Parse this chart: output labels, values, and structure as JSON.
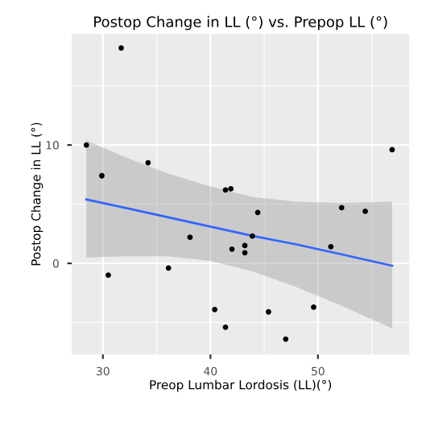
{
  "chart_data": {
    "type": "scatter",
    "title": "Postop Change in LL (°) vs. Prepop LL (°)",
    "xlabel": "Preop Lumbar Lordosis (LL)(°)",
    "ylabel": "Postop Change in LL (°)",
    "xlim": [
      27.1,
      58.5
    ],
    "ylim": [
      -7.7,
      19.4
    ],
    "xticks": [
      30,
      40,
      50
    ],
    "yticks": [
      0,
      10
    ],
    "grid": true,
    "marker": "circle",
    "series": [
      {
        "color": "#000000",
        "x": [
          28.46,
          29.9,
          30.5,
          31.7,
          34.2,
          36.1,
          38.1,
          40.4,
          41.4,
          41.4,
          41.9,
          42.0,
          43.2,
          43.2,
          43.9,
          44.4,
          45.4,
          47.0,
          49.6,
          51.2,
          52.2,
          54.4,
          56.9
        ],
        "values": [
          10.0,
          7.4,
          -1.0,
          18.2,
          8.5,
          -0.4,
          2.2,
          -3.9,
          6.2,
          -5.4,
          6.3,
          1.2,
          1.5,
          0.9,
          2.3,
          4.3,
          -4.1,
          -6.4,
          -3.7,
          1.4,
          4.7,
          4.4,
          9.6
        ]
      },
      {
        "type": "line",
        "color": "#3366ff",
        "marker": "none",
        "line_style": "solid",
        "x": [
          28.46,
          32,
          36,
          40,
          44,
          48,
          52,
          56.9
        ],
        "values": [
          5.4,
          4.7,
          3.9,
          3.1,
          2.3,
          1.6,
          0.8,
          -0.2
        ],
        "lower": [
          0.5,
          0.6,
          0.6,
          0.2,
          -0.7,
          -2.0,
          -3.5,
          -5.5
        ],
        "upper": [
          10.4,
          9.0,
          7.6,
          6.5,
          5.6,
          5.2,
          5.1,
          5.2
        ]
      }
    ]
  }
}
